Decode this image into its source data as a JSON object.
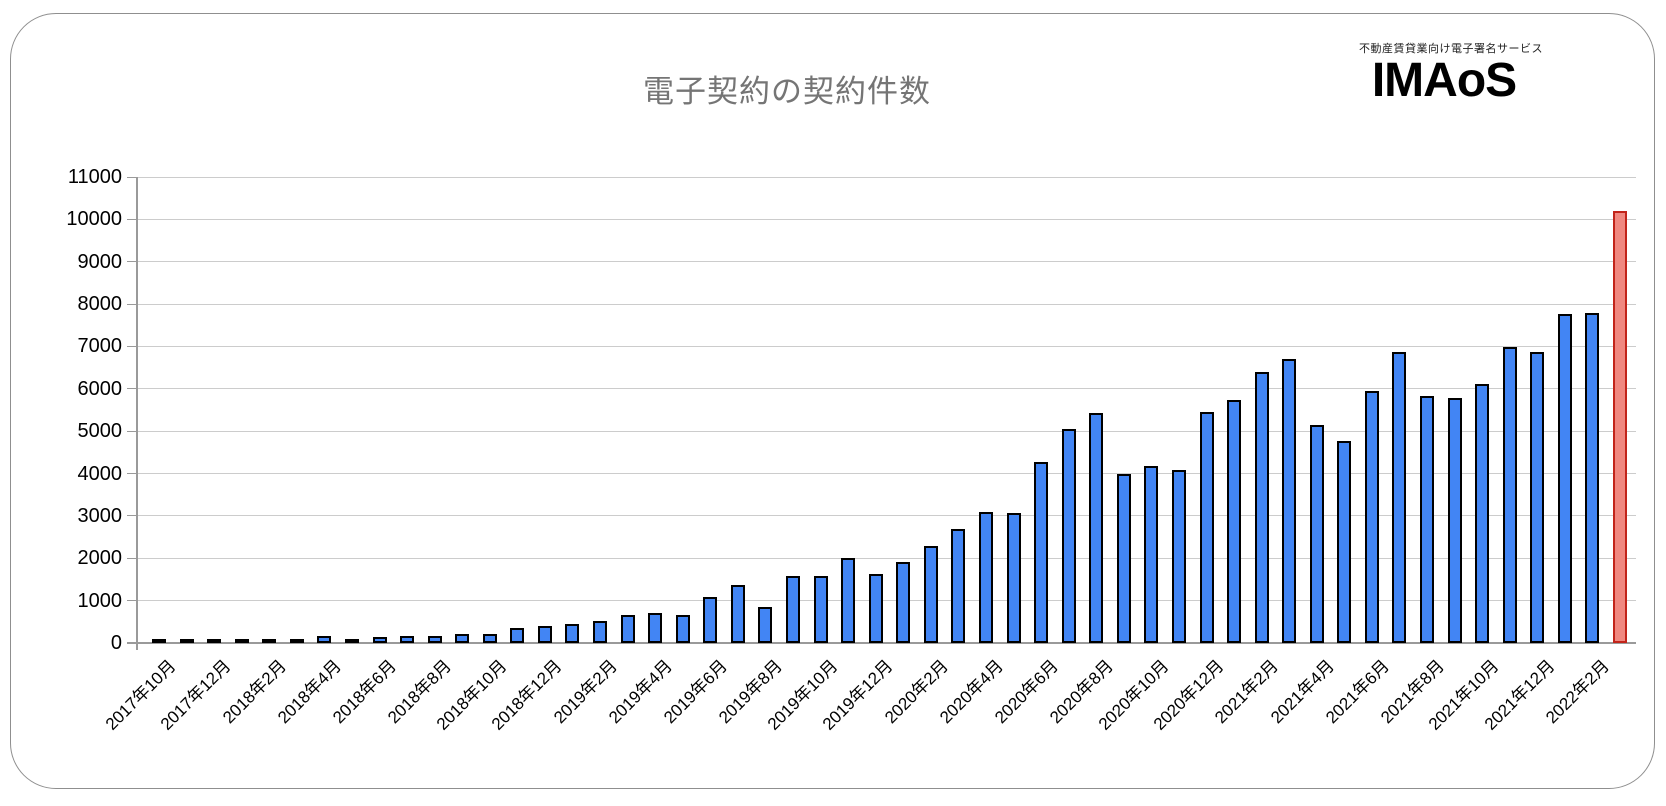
{
  "header": {
    "title": "電子契約の契約件数"
  },
  "logo": {
    "tagline": "不動産賃貸業向け電子署名サービス",
    "name": "IMAoS"
  },
  "chart_data": {
    "type": "bar",
    "title": "電子契約の契約件数",
    "x": [
      "2017年10月",
      "2017年11月",
      "2017年12月",
      "2018年1月",
      "2018年2月",
      "2018年3月",
      "2018年4月",
      "2018年5月",
      "2018年6月",
      "2018年7月",
      "2018年8月",
      "2018年9月",
      "2018年10月",
      "2018年11月",
      "2018年12月",
      "2019年1月",
      "2019年2月",
      "2019年3月",
      "2019年4月",
      "2019年5月",
      "2019年6月",
      "2019年7月",
      "2019年8月",
      "2019年9月",
      "2019年10月",
      "2019年11月",
      "2019年12月",
      "2020年1月",
      "2020年2月",
      "2020年3月",
      "2020年4月",
      "2020年5月",
      "2020年6月",
      "2020年7月",
      "2020年8月",
      "2020年9月",
      "2020年10月",
      "2020年11月",
      "2020年12月",
      "2021年1月",
      "2021年2月",
      "2021年3月",
      "2021年4月",
      "2021年5月",
      "2021年6月",
      "2021年7月",
      "2021年8月",
      "2021年9月",
      "2021年10月",
      "2021年11月",
      "2021年12月",
      "2022年1月",
      "2022年2月",
      "2022年3月"
    ],
    "values": [
      40,
      40,
      45,
      45,
      50,
      55,
      165,
      95,
      135,
      165,
      175,
      205,
      210,
      350,
      400,
      440,
      520,
      650,
      710,
      650,
      1090,
      1360,
      850,
      1570,
      1570,
      2000,
      1640,
      1910,
      2280,
      2700,
      3090,
      3070,
      4280,
      5060,
      5430,
      3980,
      4170,
      4090,
      5460,
      5730,
      6400,
      6700,
      5150,
      4760,
      5940,
      6870,
      5820,
      5780,
      6120,
      6980,
      6870,
      7770,
      7780,
      10190
    ],
    "visible_xticks": [
      "2017年10月",
      "2017年12月",
      "2018年2月",
      "2018年4月",
      "2018年6月",
      "2018年8月",
      "2018年10月",
      "2018年12月",
      "2019年2月",
      "2019年4月",
      "2019年6月",
      "2019年8月",
      "2019年10月",
      "2019年12月",
      "2020年2月",
      "2020年4月",
      "2020年6月",
      "2020年8月",
      "2020年10月",
      "2020年12月",
      "2021年2月",
      "2021年4月",
      "2021年6月",
      "2021年8月",
      "2021年10月",
      "2021年12月",
      "2022年2月"
    ],
    "xlabel_every": 2,
    "yticks": [
      0,
      1000,
      2000,
      3000,
      4000,
      5000,
      6000,
      7000,
      8000,
      9000,
      10000,
      11000
    ],
    "ylim": [
      0,
      11000
    ],
    "grid": true,
    "legend": "none",
    "bar_color": "#4285F4",
    "bar_border_color": "#000000",
    "highlight_index": 53,
    "highlight_color": "#F08880",
    "highlight_border_color": "#C2241A",
    "title_color": "#757575"
  }
}
